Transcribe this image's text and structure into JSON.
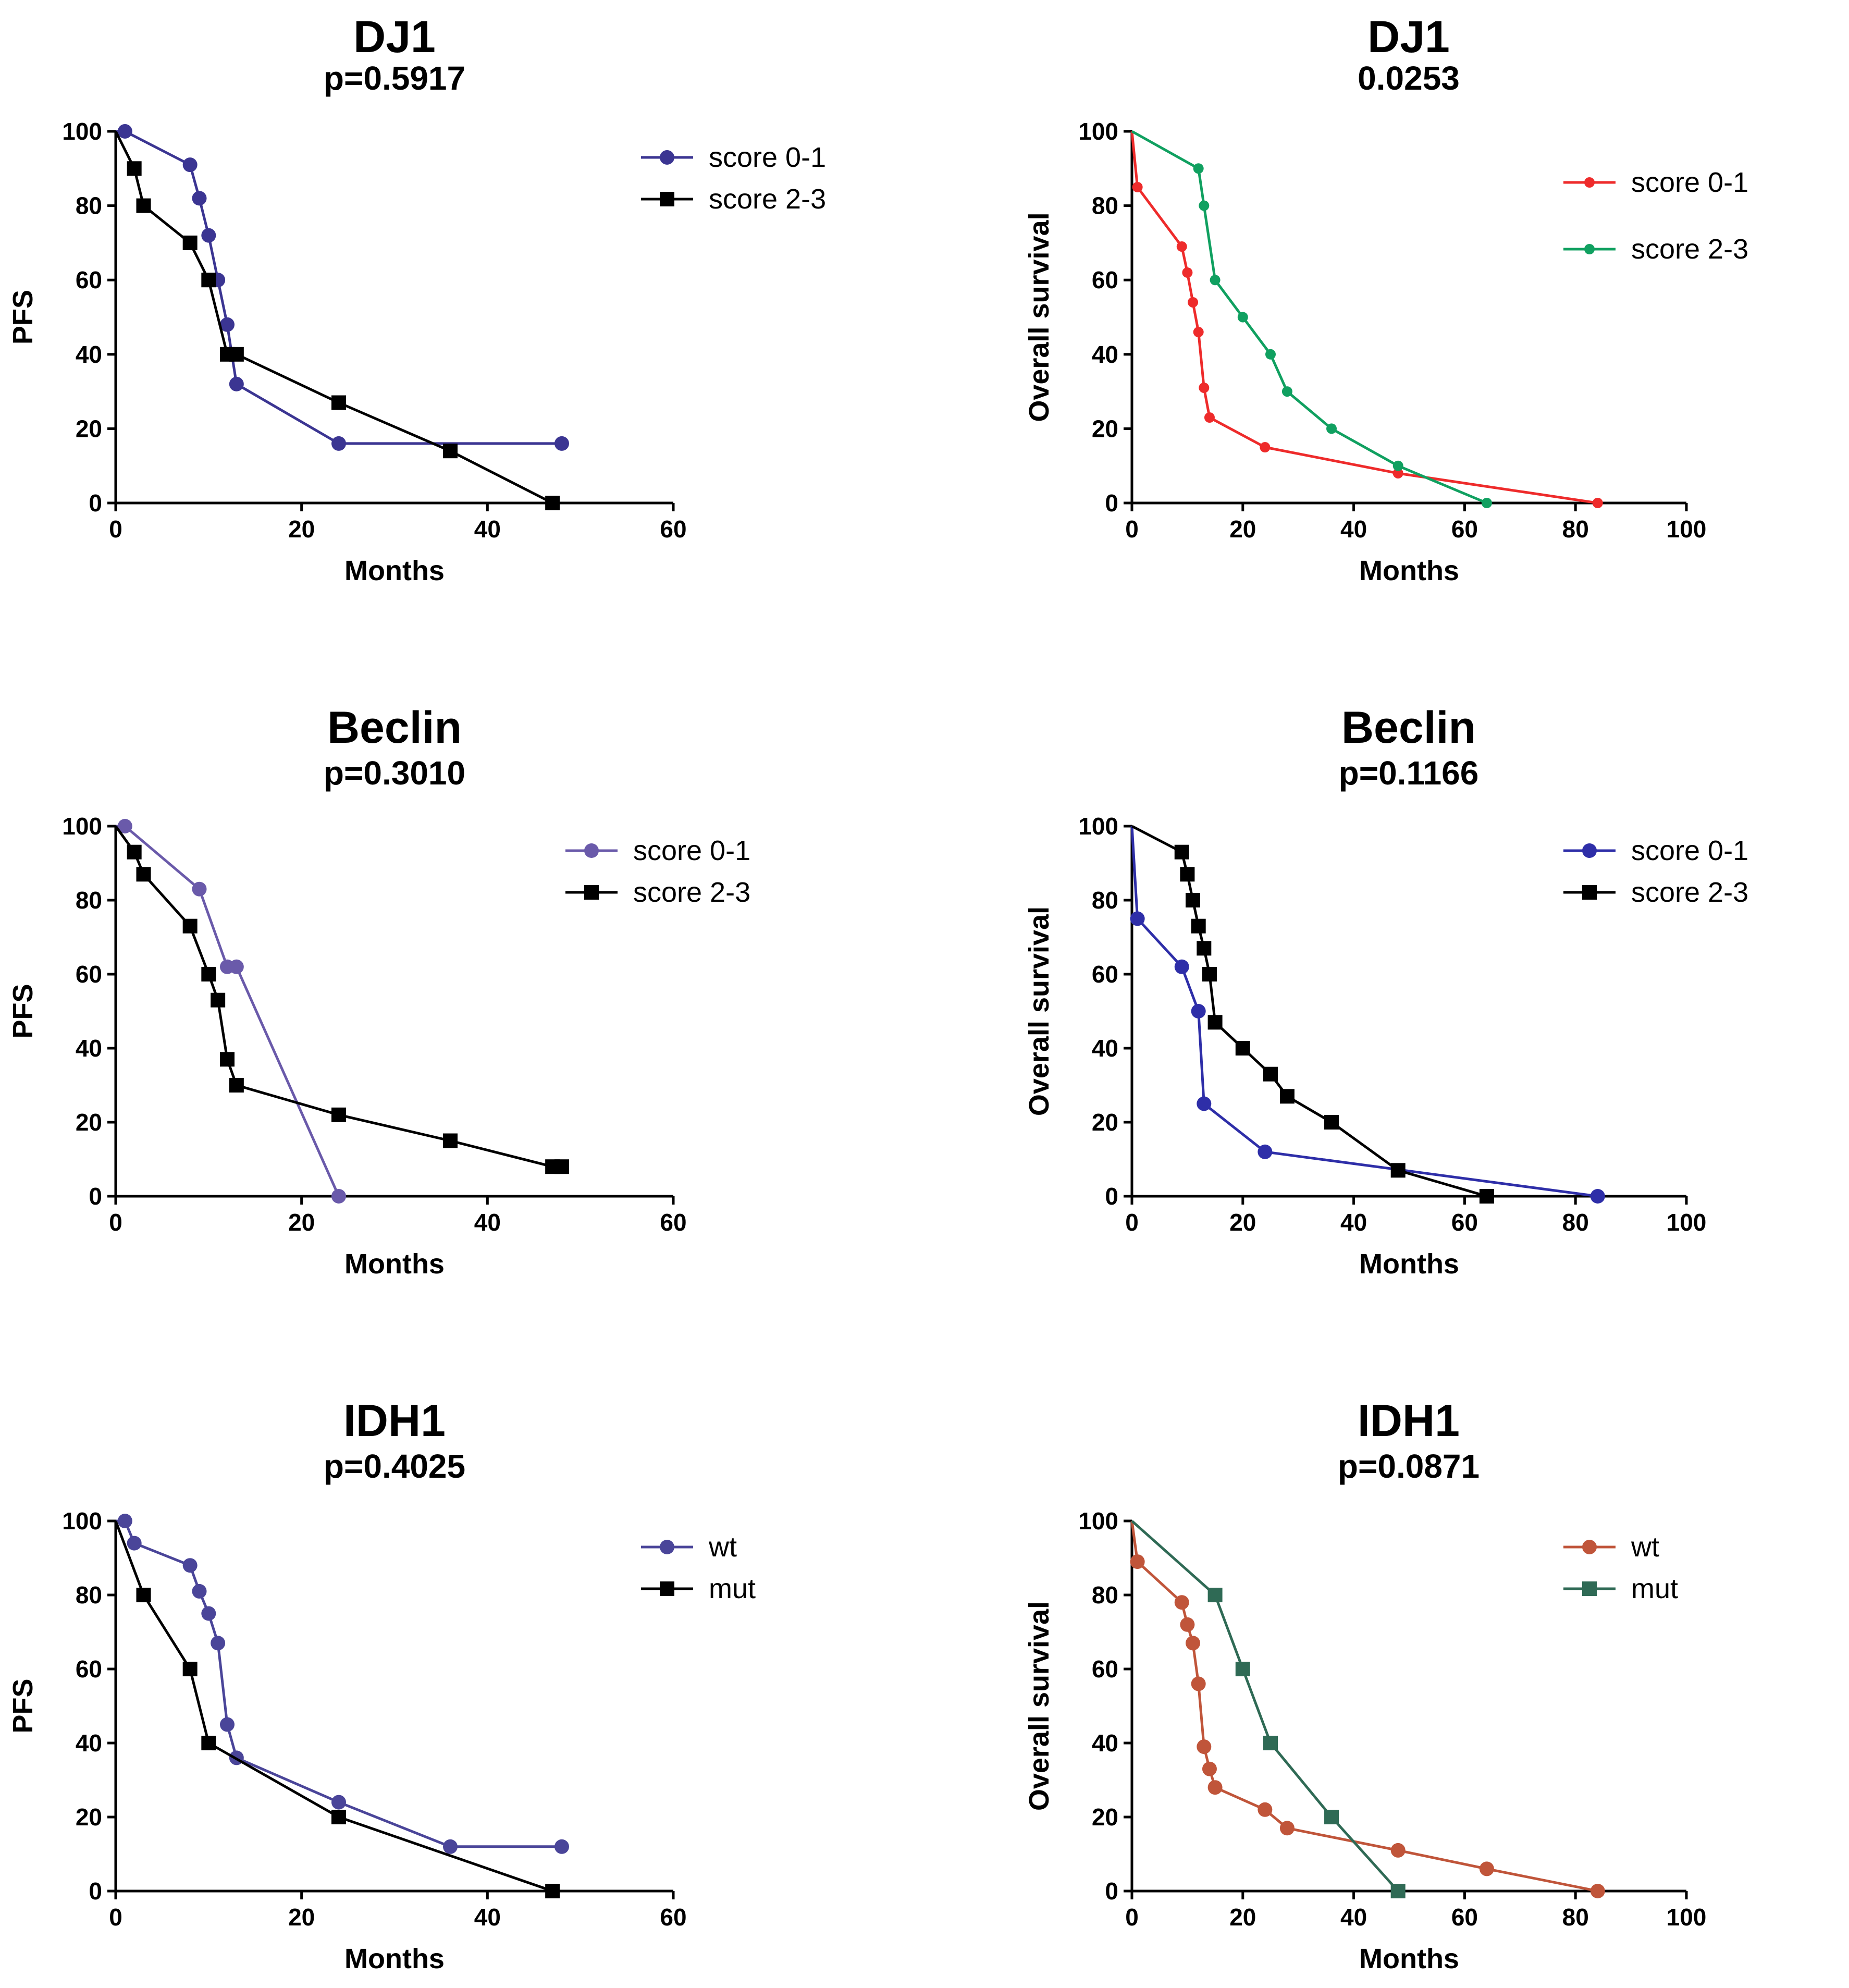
{
  "chart_data": [
    {
      "type": "line",
      "title": "DJ1",
      "subtitle": "p=0.5917",
      "xlabel": "Months",
      "ylabel": "PFS",
      "xlim": [
        0,
        60
      ],
      "ylim": [
        0,
        100
      ],
      "xticks": [
        0,
        20,
        40,
        60
      ],
      "yticks": [
        0,
        20,
        40,
        60,
        80,
        100
      ],
      "legend_position": "top-right",
      "series": [
        {
          "name": "score 0-1",
          "color": "#3b3592",
          "marker": "circle",
          "x": [
            0,
            1,
            8,
            9,
            10,
            11,
            12,
            13,
            24,
            48
          ],
          "y": [
            100,
            100,
            91,
            82,
            72,
            60,
            48,
            32,
            16,
            16
          ]
        },
        {
          "name": "score 2-3",
          "color": "#000000",
          "marker": "square",
          "x": [
            0,
            2,
            3,
            8,
            10,
            12,
            13,
            24,
            36,
            47
          ],
          "y": [
            100,
            90,
            80,
            70,
            60,
            40,
            40,
            27,
            14,
            0
          ]
        }
      ]
    },
    {
      "type": "line",
      "title": "DJ1",
      "subtitle": "0.0253",
      "xlabel": "Months",
      "ylabel": "Overall survival",
      "xlim": [
        0,
        100
      ],
      "ylim": [
        0,
        100
      ],
      "xticks": [
        0,
        20,
        40,
        60,
        80,
        100
      ],
      "yticks": [
        0,
        20,
        40,
        60,
        80,
        100
      ],
      "legend_position": "top-right",
      "series": [
        {
          "name": "score 0-1",
          "color": "#ee2b2b",
          "marker": "small-circle",
          "x": [
            0,
            1,
            9,
            10,
            11,
            12,
            13,
            14,
            24,
            48,
            84
          ],
          "y": [
            100,
            85,
            69,
            62,
            54,
            46,
            31,
            23,
            15,
            8,
            0
          ]
        },
        {
          "name": "score 2-3",
          "color": "#10a060",
          "marker": "small-circle",
          "x": [
            0,
            12,
            13,
            15,
            20,
            25,
            28,
            36,
            48,
            64
          ],
          "y": [
            100,
            90,
            80,
            60,
            50,
            40,
            30,
            20,
            10,
            0
          ]
        }
      ]
    },
    {
      "type": "line",
      "title": "Beclin",
      "subtitle": "p=0.3010",
      "xlabel": "Months",
      "ylabel": "PFS",
      "xlim": [
        0,
        60
      ],
      "ylim": [
        0,
        100
      ],
      "xticks": [
        0,
        20,
        40,
        60
      ],
      "yticks": [
        0,
        20,
        40,
        60,
        80,
        100
      ],
      "legend_position": "top-right",
      "series": [
        {
          "name": "score 0-1",
          "color": "#6a5aaa",
          "marker": "circle",
          "x": [
            0,
            1,
            9,
            12,
            13,
            24
          ],
          "y": [
            100,
            100,
            83,
            62,
            62,
            0
          ]
        },
        {
          "name": "score 2-3",
          "color": "#000000",
          "marker": "square",
          "x": [
            0,
            2,
            3,
            8,
            10,
            11,
            12,
            13,
            24,
            36,
            47,
            48
          ],
          "y": [
            100,
            93,
            87,
            73,
            60,
            53,
            37,
            30,
            22,
            15,
            8,
            8
          ]
        }
      ]
    },
    {
      "type": "line",
      "title": "Beclin",
      "subtitle": "p=0.1166",
      "xlabel": "Months",
      "ylabel": "Overall survival",
      "xlim": [
        0,
        100
      ],
      "ylim": [
        0,
        100
      ],
      "xticks": [
        0,
        20,
        40,
        60,
        80,
        100
      ],
      "yticks": [
        0,
        20,
        40,
        60,
        80,
        100
      ],
      "legend_position": "top-right",
      "series": [
        {
          "name": "score 0-1",
          "color": "#2e2ea8",
          "marker": "circle",
          "x": [
            0,
            1,
            9,
            12,
            13,
            24,
            84
          ],
          "y": [
            100,
            75,
            62,
            50,
            25,
            12,
            0
          ]
        },
        {
          "name": "score 2-3",
          "color": "#000000",
          "marker": "square",
          "x": [
            0,
            9,
            10,
            11,
            12,
            13,
            14,
            15,
            20,
            25,
            28,
            36,
            48,
            64
          ],
          "y": [
            100,
            93,
            87,
            80,
            73,
            67,
            60,
            47,
            40,
            33,
            27,
            20,
            7,
            0
          ]
        }
      ]
    },
    {
      "type": "line",
      "title": "IDH1",
      "subtitle": "p=0.4025",
      "xlabel": "Months",
      "ylabel": "PFS",
      "xlim": [
        0,
        60
      ],
      "ylim": [
        0,
        100
      ],
      "xticks": [
        0,
        20,
        40,
        60
      ],
      "yticks": [
        0,
        20,
        40,
        60,
        80,
        100
      ],
      "legend_position": "top-right",
      "series": [
        {
          "name": "wt",
          "color": "#4a4599",
          "marker": "circle",
          "x": [
            0,
            1,
            2,
            8,
            9,
            10,
            11,
            12,
            13,
            24,
            36,
            48
          ],
          "y": [
            100,
            100,
            94,
            88,
            81,
            75,
            67,
            45,
            36,
            24,
            12,
            12
          ]
        },
        {
          "name": "mut",
          "color": "#000000",
          "marker": "square",
          "x": [
            0,
            3,
            8,
            10,
            24,
            47
          ],
          "y": [
            100,
            80,
            60,
            40,
            20,
            0
          ]
        }
      ]
    },
    {
      "type": "line",
      "title": "IDH1",
      "subtitle": "p=0.0871",
      "xlabel": "Months",
      "ylabel": "Overall survival",
      "xlim": [
        0,
        100
      ],
      "ylim": [
        0,
        100
      ],
      "xticks": [
        0,
        20,
        40,
        60,
        80,
        100
      ],
      "yticks": [
        0,
        20,
        40,
        60,
        80,
        100
      ],
      "legend_position": "top-right",
      "series": [
        {
          "name": "wt",
          "color": "#c0553a",
          "marker": "circle",
          "x": [
            0,
            1,
            9,
            10,
            11,
            12,
            13,
            14,
            15,
            24,
            28,
            48,
            64,
            84
          ],
          "y": [
            100,
            89,
            78,
            72,
            67,
            56,
            39,
            33,
            28,
            22,
            17,
            11,
            6,
            0
          ]
        },
        {
          "name": "mut",
          "color": "#2f6a55",
          "marker": "square",
          "x": [
            0,
            15,
            20,
            25,
            36,
            48
          ],
          "y": [
            100,
            80,
            60,
            40,
            20,
            0
          ]
        }
      ]
    }
  ]
}
